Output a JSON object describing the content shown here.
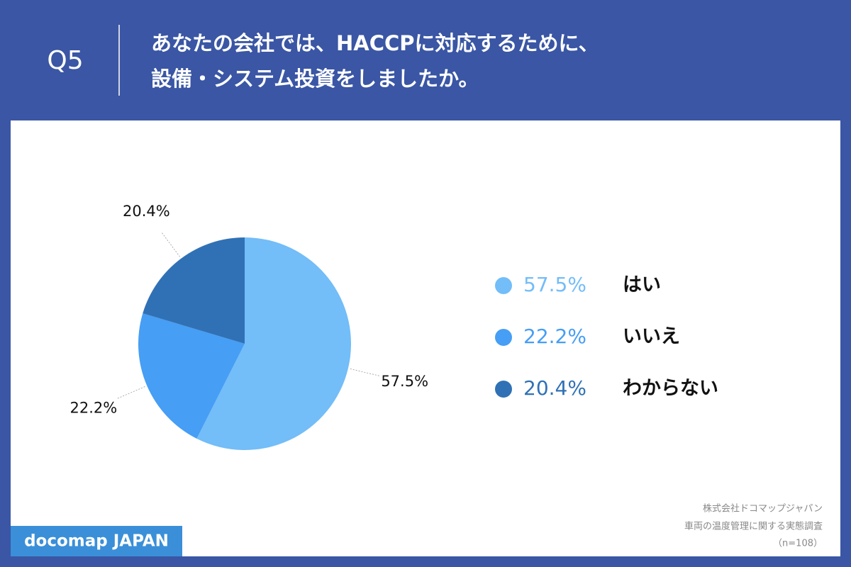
{
  "header": {
    "number": "Q5",
    "title_lines": [
      "あなたの会社では、HACCPに対応するために、",
      "設備・システム投資をしましたか。"
    ]
  },
  "chart_data": {
    "type": "pie",
    "categories": [
      "はい",
      "いいえ",
      "わからない"
    ],
    "values": [
      57.5,
      22.2,
      20.4
    ],
    "value_labels": [
      "57.5%",
      "22.2%",
      "20.4%"
    ],
    "colors": [
      "#73bdf8",
      "#469ef5",
      "#3071b5"
    ],
    "start_angle": 0,
    "direction": "clockwise"
  },
  "footer": {
    "brand": "docomap JAPAN",
    "source_lines": [
      "株式会社ドコマップジャパン",
      "車両の温度管理に関する実態調査",
      "（n=108）"
    ]
  }
}
